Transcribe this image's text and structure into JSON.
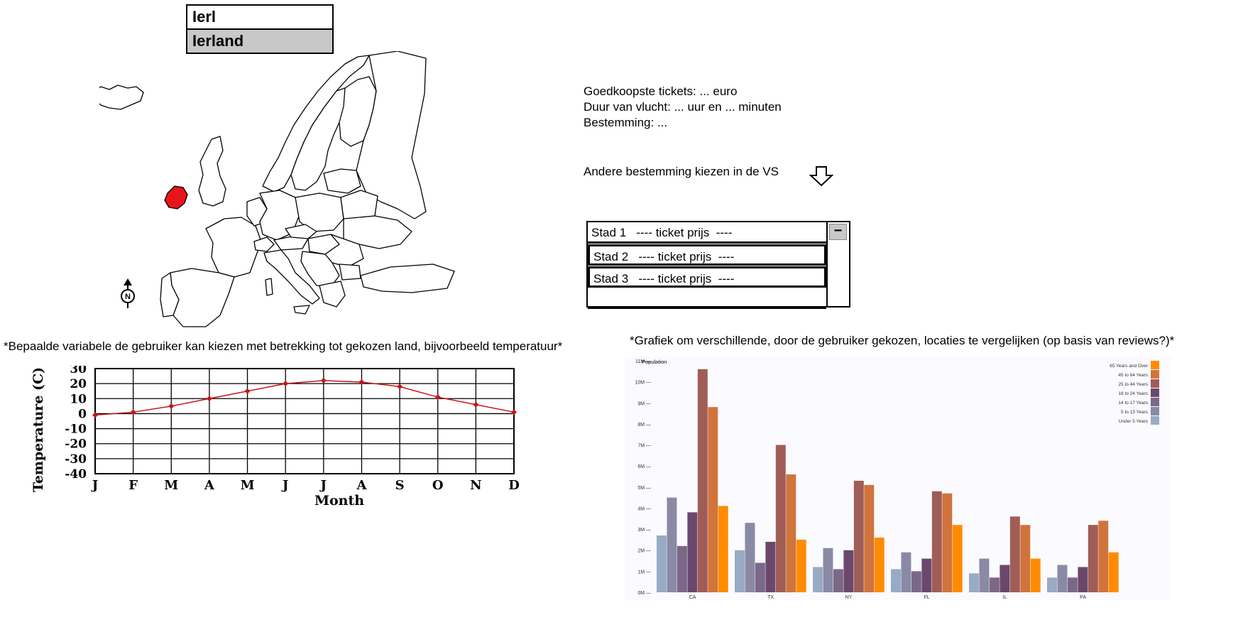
{
  "search": {
    "query": "Ierl",
    "suggestion": "Ierland"
  },
  "map": {
    "highlight_color": "#e8141b",
    "compass_icon": "north-compass-icon",
    "compass_label": "N"
  },
  "info": {
    "line1": "Goedkoopste tickets: ... euro",
    "line2": "Duur van vlucht: ... uur en ... minuten",
    "line3": "Bestemming: ..."
  },
  "other_destination": {
    "label": "Andere bestemming kiezen in de VS",
    "icon": "arrow-down-icon"
  },
  "city_list": {
    "rows": [
      {
        "city": "Stad 1",
        "price": "---- ticket prijs  ----"
      },
      {
        "city": "Stad 2",
        "price": "---- ticket prijs  ----"
      },
      {
        "city": "Stad 3",
        "price": "---- ticket prijs  ----"
      }
    ],
    "scroll_thumb": "−"
  },
  "captions": {
    "left": "*Bepaalde variabele de gebruiker kan kiezen met betrekking tot gekozen land, bijvoorbeeld temperatuur*",
    "right": "*Grafiek om verschillende, door de gebruiker gekozen, locaties te vergelijken (op basis van reviews?)*"
  },
  "chart_data": [
    {
      "type": "line",
      "xlabel": "Month",
      "ylabel": "Temperature (C)",
      "categories": [
        "J",
        "F",
        "M",
        "A",
        "M",
        "J",
        "J",
        "A",
        "S",
        "O",
        "N",
        "D"
      ],
      "values": [
        -1,
        1,
        5,
        10,
        15,
        20,
        22,
        21,
        18,
        11,
        6,
        1
      ],
      "ylim": [
        -40,
        30
      ],
      "yticks": [
        "30",
        "20",
        "10",
        "0",
        "-10",
        "-20",
        "-30",
        "-40"
      ],
      "grid": true,
      "line_color": "#c8141b"
    },
    {
      "type": "bar",
      "ylabel": "Population",
      "categories": [
        "CA",
        "TX",
        "NY",
        "FL",
        "IL",
        "PA"
      ],
      "ylim": [
        0,
        11
      ],
      "yticks": [
        "0M",
        "1M",
        "2M",
        "3M",
        "4M",
        "5M",
        "6M",
        "7M",
        "8M",
        "9M",
        "10M",
        "11M"
      ],
      "legend_position": "top-right",
      "series": [
        {
          "name": "Under 5 Years",
          "color": "#98abc5",
          "values": [
            2.7,
            2.0,
            1.2,
            1.1,
            0.9,
            0.7
          ]
        },
        {
          "name": "5 to 13 Years",
          "color": "#8a89a6",
          "values": [
            4.5,
            3.3,
            2.1,
            1.9,
            1.6,
            1.3
          ]
        },
        {
          "name": "14 to 17 Years",
          "color": "#7b6888",
          "values": [
            2.2,
            1.4,
            1.1,
            1.0,
            0.7,
            0.7
          ]
        },
        {
          "name": "18 to 24 Years",
          "color": "#6b486b",
          "values": [
            3.8,
            2.4,
            2.0,
            1.6,
            1.3,
            1.2
          ]
        },
        {
          "name": "25 to 44 Years",
          "color": "#a05d56",
          "values": [
            10.6,
            7.0,
            5.3,
            4.8,
            3.6,
            3.2
          ]
        },
        {
          "name": "45 to 64 Years",
          "color": "#d0743c",
          "values": [
            8.8,
            5.6,
            5.1,
            4.7,
            3.2,
            3.4
          ]
        },
        {
          "name": "65 Years and Over",
          "color": "#ff8c00",
          "values": [
            4.1,
            2.5,
            2.6,
            3.2,
            1.6,
            1.9
          ]
        }
      ]
    }
  ]
}
